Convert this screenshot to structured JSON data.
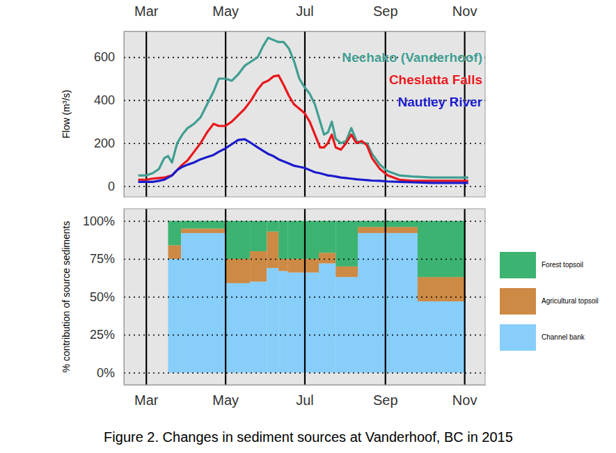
{
  "caption": "Figure 2. Changes in sediment sources at Vanderhoof, BC in 2015",
  "chart_data": [
    {
      "type": "line",
      "y_label": "Flow (m³/s)",
      "x": [
        54,
        60,
        65,
        70,
        74,
        77,
        80,
        84,
        88,
        92,
        97,
        102,
        107,
        112,
        116,
        121,
        126,
        131,
        136,
        141,
        146,
        150,
        154,
        158,
        162,
        166,
        170,
        174,
        178,
        182,
        186,
        190,
        194,
        197,
        200,
        203,
        206,
        210,
        214,
        218,
        222,
        226,
        230,
        234,
        240,
        246,
        255,
        265,
        280,
        295,
        308
      ],
      "series": [
        {
          "name": "Nechako (Vanderhoof)",
          "color": "#3f9e91",
          "values": [
            50,
            50,
            60,
            80,
            130,
            140,
            110,
            200,
            240,
            270,
            290,
            320,
            380,
            440,
            500,
            500,
            490,
            520,
            560,
            580,
            600,
            650,
            690,
            680,
            670,
            670,
            640,
            580,
            500,
            460,
            430,
            380,
            300,
            240,
            250,
            300,
            220,
            200,
            210,
            270,
            210,
            200,
            200,
            150,
            100,
            70,
            50,
            45,
            40,
            40,
            40
          ]
        },
        {
          "name": "Cheslatta Falls",
          "color": "#e8161b",
          "values": [
            30,
            30,
            35,
            38,
            40,
            45,
            50,
            75,
            100,
            120,
            160,
            200,
            250,
            290,
            280,
            280,
            300,
            330,
            360,
            400,
            450,
            480,
            490,
            510,
            515,
            470,
            420,
            380,
            360,
            340,
            300,
            240,
            180,
            180,
            200,
            240,
            180,
            170,
            200,
            240,
            200,
            210,
            190,
            130,
            80,
            50,
            30,
            25,
            25,
            25,
            25
          ]
        },
        {
          "name": "Nautley River",
          "color": "#1a1acc",
          "values": [
            20,
            20,
            20,
            25,
            30,
            40,
            50,
            75,
            90,
            100,
            110,
            125,
            135,
            145,
            160,
            175,
            195,
            215,
            218,
            200,
            180,
            165,
            150,
            140,
            125,
            115,
            105,
            95,
            90,
            85,
            75,
            65,
            60,
            55,
            50,
            48,
            45,
            40,
            38,
            35,
            32,
            30,
            28,
            26,
            25,
            22,
            20,
            18,
            15,
            15,
            15
          ]
        }
      ],
      "xlim": [
        43,
        321
      ],
      "xticks": [
        {
          "value": 60,
          "label": "Mar"
        },
        {
          "value": 121,
          "label": "May"
        },
        {
          "value": 182,
          "label": "Jul"
        },
        {
          "value": 244,
          "label": "Sep"
        },
        {
          "value": 305,
          "label": "Nov"
        }
      ],
      "ylim": [
        -50,
        720
      ],
      "yticks": [
        0,
        200,
        400,
        600
      ],
      "grid": true,
      "legend": "top-right"
    },
    {
      "type": "bar",
      "stacked": true,
      "y_label": "% contribution of source sediments",
      "bins": [
        77,
        87,
        121,
        140,
        153,
        162,
        169,
        193,
        206,
        223,
        269,
        306
      ],
      "series": [
        {
          "name": "Channel bank",
          "color": "#87cefa",
          "values": [
            75,
            92,
            59,
            60,
            69,
            67,
            66,
            72,
            63,
            92,
            47
          ]
        },
        {
          "name": "Agricultural  topsoil",
          "color": "#cd8a45",
          "values": [
            9,
            3,
            16,
            20,
            24,
            8,
            9,
            7,
            7,
            4,
            16
          ]
        },
        {
          "name": "Forest topsoil",
          "color": "#3cb371",
          "values": [
            16,
            5,
            25,
            20,
            7,
            25,
            25,
            21,
            30,
            4,
            37
          ]
        }
      ],
      "xlim": [
        43,
        321
      ],
      "xticks": [
        {
          "value": 60,
          "label": "Mar"
        },
        {
          "value": 121,
          "label": "May"
        },
        {
          "value": 182,
          "label": "Jul"
        },
        {
          "value": 244,
          "label": "Sep"
        },
        {
          "value": 305,
          "label": "Nov"
        }
      ],
      "ylim": [
        -8,
        108
      ],
      "yticks": [
        {
          "value": 0,
          "label": "0%"
        },
        {
          "value": 25,
          "label": "25%"
        },
        {
          "value": 50,
          "label": "50%"
        },
        {
          "value": 75,
          "label": "75%"
        },
        {
          "value": 100,
          "label": "100%"
        }
      ],
      "grid": true,
      "legend": "right"
    }
  ]
}
